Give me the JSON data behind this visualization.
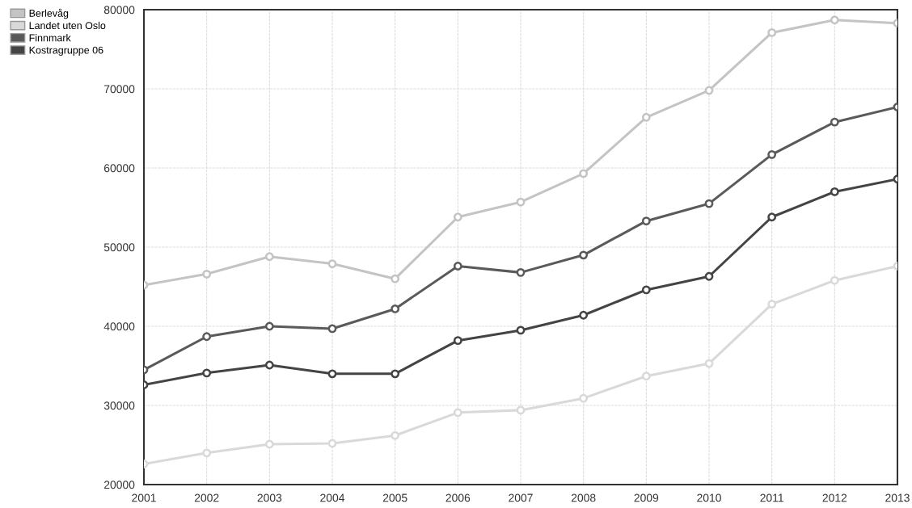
{
  "chart_data": {
    "type": "line",
    "categories": [
      "2001",
      "2002",
      "2003",
      "2004",
      "2005",
      "2006",
      "2007",
      "2008",
      "2009",
      "2010",
      "2011",
      "2012",
      "2013"
    ],
    "series": [
      {
        "name": "Berlevåg",
        "color": "#c4c4c4",
        "values": [
          45200,
          46600,
          48800,
          47900,
          46000,
          53800,
          55700,
          59300,
          66400,
          69800,
          77100,
          78700,
          78300
        ]
      },
      {
        "name": "Landet uten Oslo",
        "color": "#d9d9d9",
        "values": [
          22600,
          24000,
          25100,
          25200,
          26200,
          29100,
          29400,
          30900,
          33700,
          35300,
          42800,
          45800,
          47600
        ]
      },
      {
        "name": "Finnmark",
        "color": "#5a5a5a",
        "values": [
          34500,
          38700,
          40000,
          39700,
          42200,
          47600,
          46800,
          49000,
          53300,
          55500,
          61700,
          65800,
          67700
        ]
      },
      {
        "name": "Kostragruppe 06",
        "color": "#444444",
        "values": [
          32600,
          34100,
          35100,
          34000,
          34000,
          38200,
          39500,
          41400,
          44600,
          46300,
          53800,
          57000,
          58600
        ]
      }
    ],
    "ylim": [
      20000,
      80000
    ],
    "yticks": [
      20000,
      30000,
      40000,
      50000,
      60000,
      70000,
      80000
    ],
    "grid": true,
    "legend": "top left",
    "marker": "circle",
    "line_style": "solid"
  }
}
